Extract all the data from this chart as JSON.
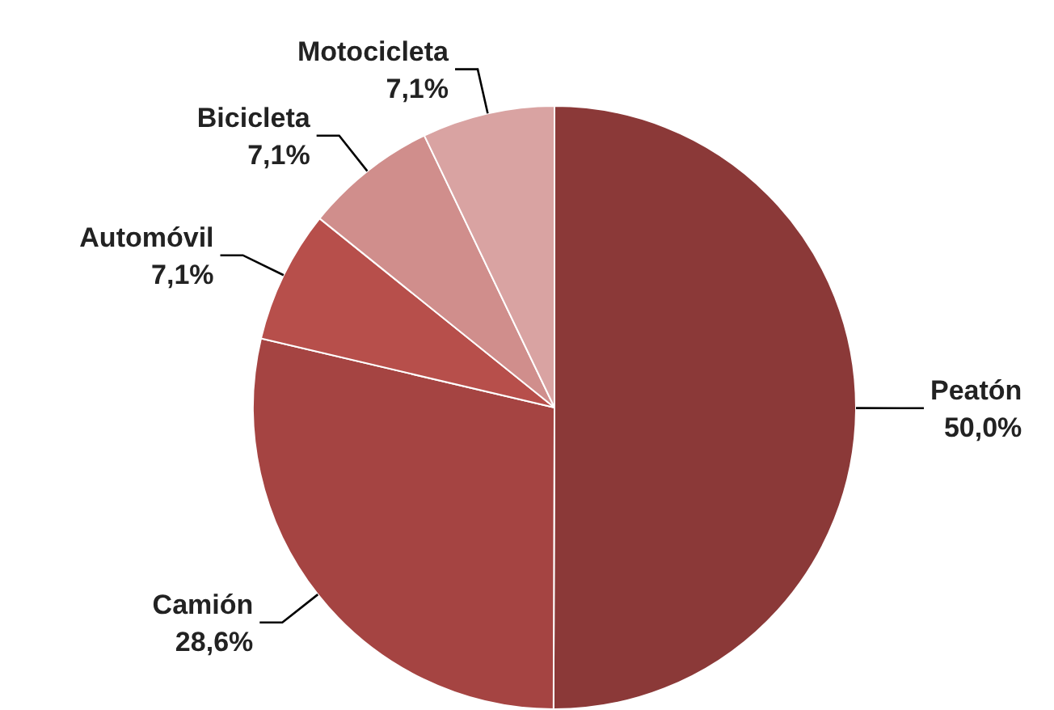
{
  "chart_data": {
    "type": "pie",
    "categories": [
      "Peatón",
      "Camión",
      "Automóvil",
      "Bicicleta",
      "Motocicleta"
    ],
    "values": [
      50.0,
      28.6,
      7.1,
      7.1,
      7.1
    ],
    "value_labels": [
      "50,0%",
      "28,6%",
      "7,1%",
      "7,1%",
      "7,1%"
    ],
    "colors": [
      "#8b3938",
      "#a54442",
      "#b74f4b",
      "#d08e8c",
      "#d9a3a2"
    ],
    "legend": false
  }
}
